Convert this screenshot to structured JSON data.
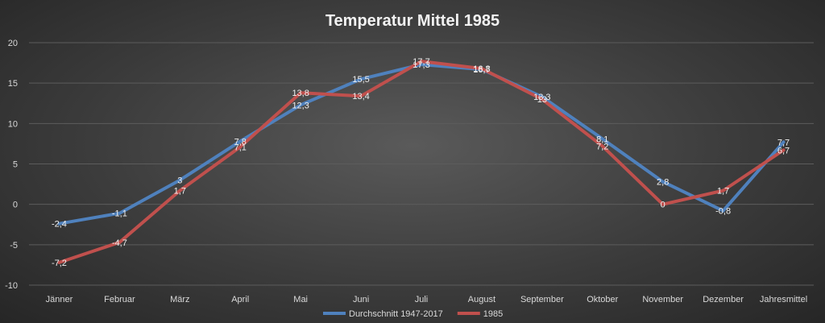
{
  "chart_data": {
    "type": "line",
    "title": "Temperatur Mittel 1985",
    "categories": [
      "Jänner",
      "Februar",
      "März",
      "April",
      "Mai",
      "Juni",
      "Juli",
      "August",
      "September",
      "Oktober",
      "November",
      "Dezember",
      "Jahresmittel"
    ],
    "ylim": [
      -10,
      20
    ],
    "yticks": [
      -10,
      -5,
      0,
      5,
      10,
      15,
      20
    ],
    "grid": true,
    "legend_position": "bottom",
    "series": [
      {
        "name": "Durchschnitt 1947-2017",
        "color": "#4f81bd",
        "values": [
          -2.4,
          -1.1,
          3,
          7.8,
          12.3,
          15.5,
          17.3,
          16.7,
          13.3,
          8.1,
          2.8,
          -0.8,
          7.7
        ],
        "labels": [
          "-2,4",
          "-1,1",
          "3",
          "7,8",
          "12,3",
          "15,5",
          "17,3",
          "16,7",
          "13,3",
          "8,1",
          "2,8",
          "-0,8",
          "7,7"
        ]
      },
      {
        "name": "1985",
        "color": "#c0504d",
        "values": [
          -7.2,
          -4.7,
          1.7,
          7.1,
          13.8,
          13.4,
          17.7,
          16.8,
          13,
          7.2,
          0,
          1.7,
          6.7
        ],
        "labels": [
          "-7,2",
          "-4,7",
          "1,7",
          "7,1",
          "13,8",
          "13,4",
          "17,7",
          "16,8",
          "13",
          "7,2",
          "0",
          "1,7",
          "6,7"
        ]
      }
    ]
  }
}
